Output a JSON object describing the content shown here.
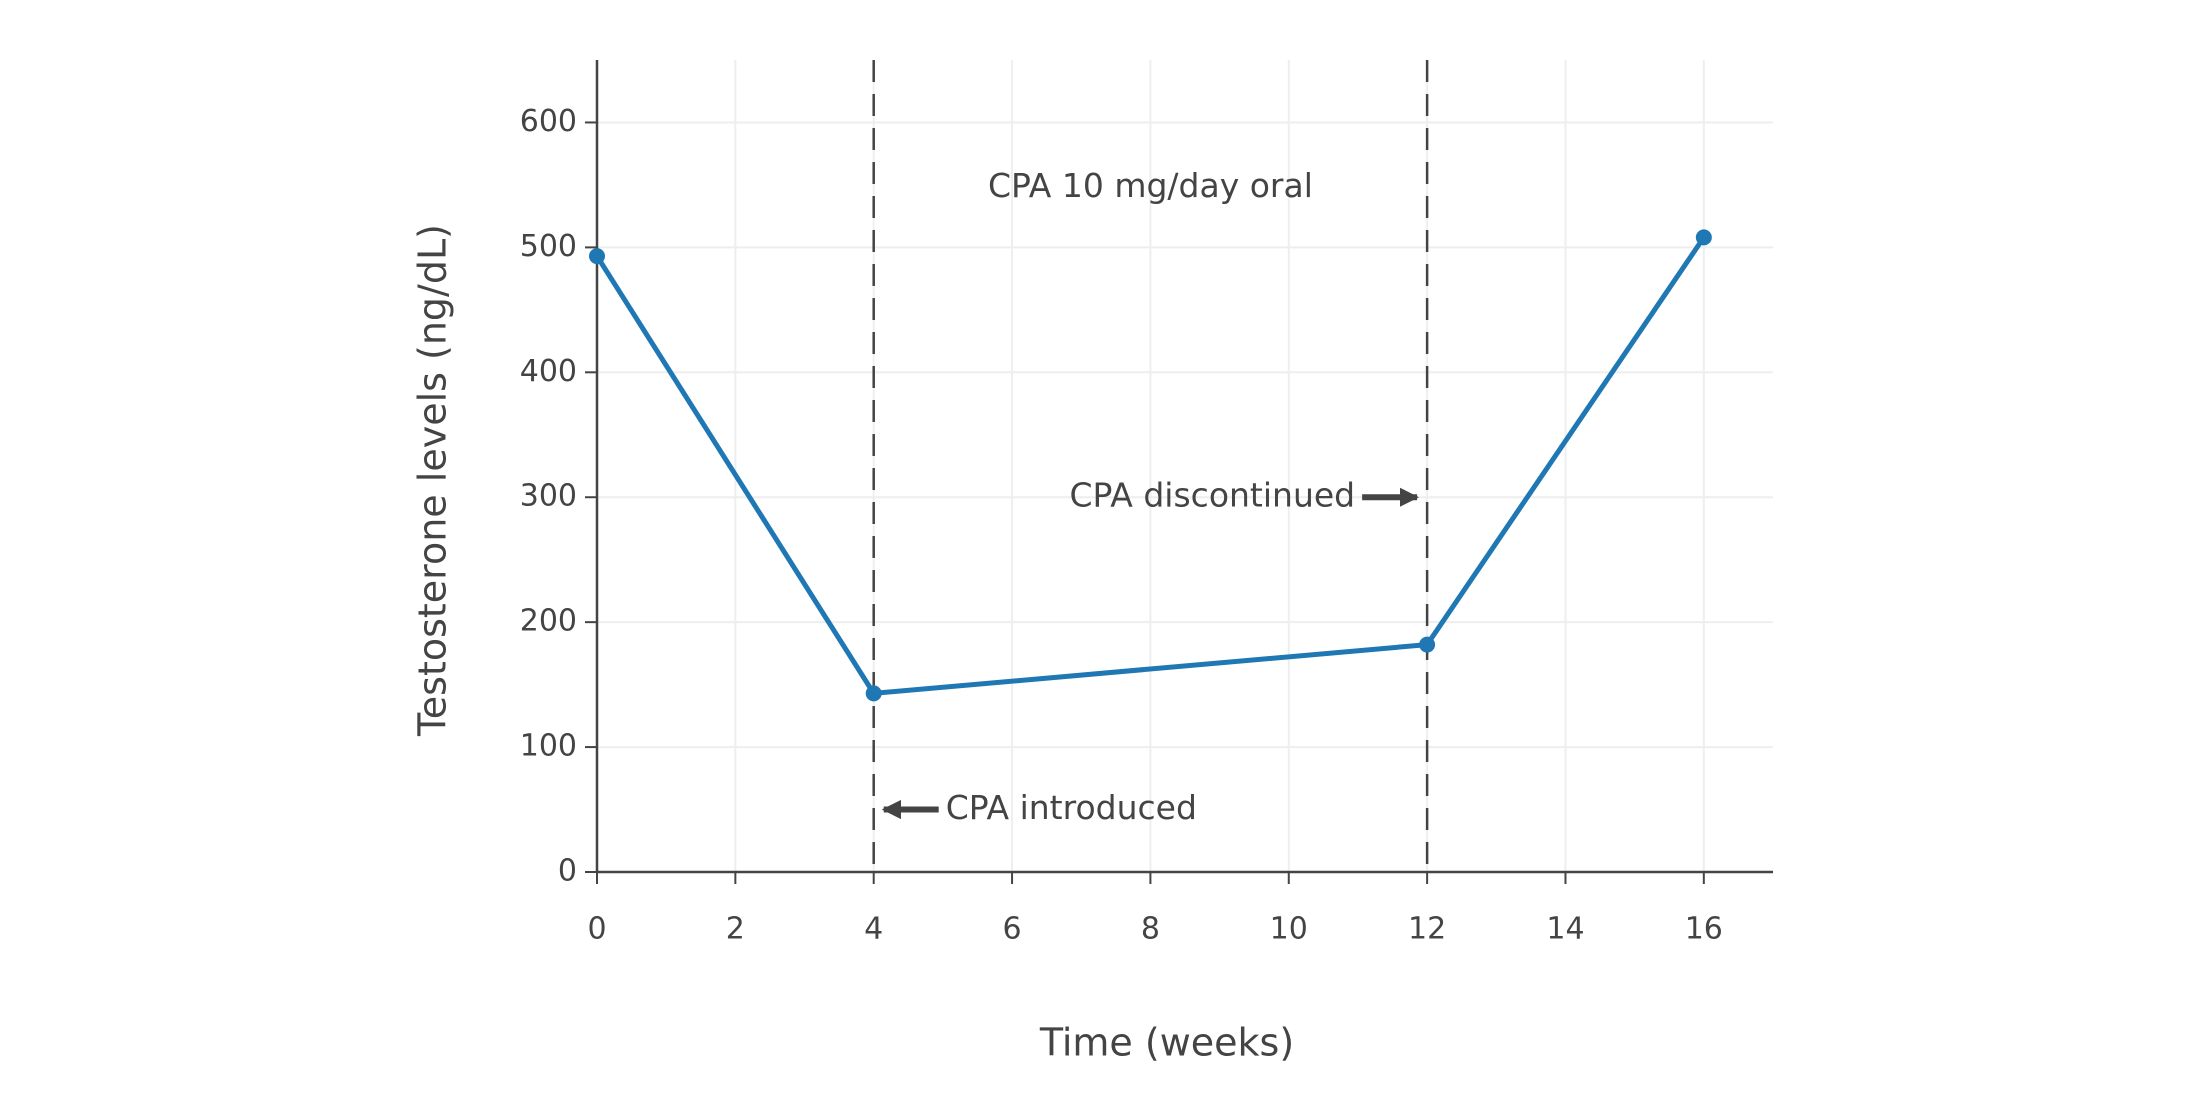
{
  "chart_data": {
    "type": "line",
    "x_label": "Time (weeks)",
    "y_label": "Testosterone levels (ng/dL)",
    "x": [
      0,
      4,
      12,
      16
    ],
    "series": [
      {
        "color": "#1f77b4",
        "values": [
          493,
          143,
          182,
          508
        ]
      }
    ],
    "xlim": [
      0,
      17
    ],
    "ylim": [
      0,
      650
    ],
    "xticks": [
      0,
      2,
      4,
      6,
      8,
      10,
      12,
      14,
      16
    ],
    "yticks": [
      0,
      100,
      200,
      300,
      400,
      500,
      600
    ],
    "grid": true,
    "vlines": [
      4,
      12
    ],
    "annotations": [
      {
        "text": "CPA 10 mg/day oral",
        "x": 8,
        "y": 548
      },
      {
        "text": "CPA discontinued",
        "x": 12,
        "y": 300
      },
      {
        "text": "CPA introduced",
        "x": 4,
        "y": 50
      }
    ]
  }
}
